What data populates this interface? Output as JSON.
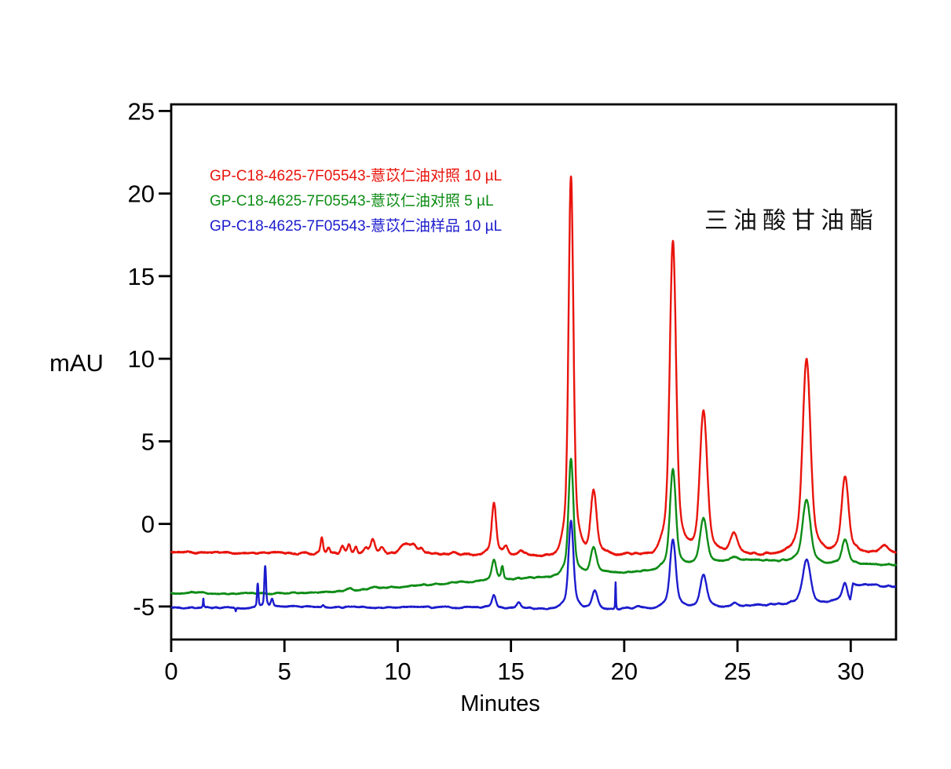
{
  "figure": {
    "background": "#ffffff",
    "ylabel": "mAU",
    "xlabel": "Minutes",
    "annotation": "三油酸甘油酯",
    "legend": [
      {
        "label": "GP-C18-4625-7F05543-薏苡仁油对照 10 µL",
        "color": "#e8140c"
      },
      {
        "label": "GP-C18-4625-7F05543-薏苡仁油对照 5 µL",
        "color": "#0e8c16"
      },
      {
        "label": "GP-C18-4625-7F05543-薏苡仁油样品 10 µL",
        "color": "#1c1ccd"
      }
    ]
  },
  "chart_data": {
    "type": "line",
    "title": "",
    "xlabel": "Minutes",
    "ylabel": "mAU",
    "x_unit": "min",
    "y_unit": "mAU",
    "xlim": [
      0,
      32
    ],
    "ylim": [
      -7,
      25.4
    ],
    "xticks": [
      0,
      5,
      10,
      15,
      20,
      25,
      30
    ],
    "yticks": [
      -5,
      0,
      5,
      10,
      15,
      20,
      25
    ],
    "grid": false,
    "frame": true,
    "legend_position": "upper-left-inside",
    "annotation": {
      "text": "三油酸甘油酯",
      "x_min": 23.6,
      "y_mAU": 18.7
    },
    "series": [
      {
        "name": "GP-C18-4625-7F05543-薏苡仁油对照 10 µL",
        "color": "#e8140c",
        "noise": 0.075,
        "seed": 11,
        "baseline": [
          [
            0,
            -1.72
          ],
          [
            5,
            -1.76
          ],
          [
            6.2,
            -1.8
          ],
          [
            12,
            -1.82
          ],
          [
            14,
            -1.85
          ],
          [
            16.8,
            -1.88
          ],
          [
            19.3,
            -1.82
          ],
          [
            21.3,
            -1.8
          ],
          [
            24.3,
            -1.82
          ],
          [
            27,
            -1.8
          ],
          [
            30.6,
            -1.7
          ],
          [
            31.3,
            -1.72
          ],
          [
            32,
            -1.72
          ]
        ],
        "peaks": [
          [
            6.65,
            -0.8,
            0.05
          ],
          [
            6.95,
            -1.45,
            0.05
          ],
          [
            7.55,
            -1.4,
            0.07
          ],
          [
            7.85,
            -1.28,
            0.06
          ],
          [
            8.15,
            -1.33,
            0.06
          ],
          [
            8.6,
            -1.5,
            0.07
          ],
          [
            8.9,
            -0.95,
            0.09
          ],
          [
            9.3,
            -1.5,
            0.09
          ],
          [
            10.3,
            -1.28,
            0.2
          ],
          [
            10.7,
            -1.35,
            0.12
          ],
          [
            11.05,
            -1.5,
            0.09
          ],
          [
            12.55,
            -1.7,
            0.1
          ],
          [
            14.25,
            1.25,
            0.09
          ],
          [
            14.78,
            -1.38,
            0.08
          ],
          [
            15.45,
            -1.55,
            0.09
          ],
          [
            17.65,
            21.0,
            0.1
          ],
          [
            18.65,
            2.1,
            0.12
          ],
          [
            22.15,
            17.15,
            0.13
          ],
          [
            23.5,
            6.8,
            0.15
          ],
          [
            24.85,
            -0.55,
            0.16
          ],
          [
            28.05,
            10.0,
            0.16
          ],
          [
            29.75,
            2.9,
            0.14
          ],
          [
            31.5,
            -1.3,
            0.18
          ]
        ]
      },
      {
        "name": "GP-C18-4625-7F05543-薏苡仁油对照 5 µL",
        "color": "#0e8c16",
        "noise": 0.055,
        "seed": 22,
        "baseline": [
          [
            0,
            -4.2
          ],
          [
            1.2,
            -4.15
          ],
          [
            2.5,
            -4.22
          ],
          [
            5,
            -4.18
          ],
          [
            6.5,
            -4.12
          ],
          [
            8,
            -4.0
          ],
          [
            9,
            -3.92
          ],
          [
            10,
            -3.82
          ],
          [
            11,
            -3.72
          ],
          [
            12,
            -3.6
          ],
          [
            13,
            -3.5
          ],
          [
            14.8,
            -3.35
          ],
          [
            16,
            -3.25
          ],
          [
            17.1,
            -3.15
          ],
          [
            18.2,
            -3.0
          ],
          [
            19.5,
            -2.92
          ],
          [
            20.5,
            -2.88
          ],
          [
            21.4,
            -2.8
          ],
          [
            22.8,
            -2.55
          ],
          [
            23.1,
            -2.5
          ],
          [
            24.3,
            -2.3
          ],
          [
            25.2,
            -2.2
          ],
          [
            26.5,
            -2.2
          ],
          [
            27.3,
            -2.25
          ],
          [
            28.8,
            -2.42
          ],
          [
            30.3,
            -2.4
          ],
          [
            31.2,
            -2.45
          ],
          [
            32,
            -2.45
          ]
        ],
        "peaks": [
          [
            7.9,
            -3.9,
            0.08
          ],
          [
            9.0,
            -3.78,
            0.1
          ],
          [
            14.25,
            -2.15,
            0.09
          ],
          [
            14.62,
            -2.62,
            0.045
          ],
          [
            17.65,
            3.95,
            0.1
          ],
          [
            18.65,
            -1.4,
            0.12
          ],
          [
            22.15,
            3.35,
            0.12
          ],
          [
            23.5,
            0.35,
            0.14
          ],
          [
            24.85,
            -1.98,
            0.14
          ],
          [
            28.05,
            1.45,
            0.16
          ],
          [
            29.75,
            -0.95,
            0.13
          ]
        ]
      },
      {
        "name": "GP-C18-4625-7F05543-薏苡仁油样品 10 µL",
        "color": "#1c1ccd",
        "noise": 0.05,
        "seed": 33,
        "baseline": [
          [
            0,
            -5.08
          ],
          [
            3.4,
            -5.08
          ],
          [
            5.2,
            -5.0
          ],
          [
            7,
            -5.05
          ],
          [
            10,
            -5.05
          ],
          [
            13,
            -5.05
          ],
          [
            15.8,
            -5.1
          ],
          [
            16.8,
            -5.12
          ],
          [
            19.4,
            -5.15
          ],
          [
            20.9,
            -5.1
          ],
          [
            22.9,
            -5.05
          ],
          [
            24.5,
            -5.0
          ],
          [
            26,
            -4.9
          ],
          [
            27.2,
            -4.85
          ],
          [
            28.7,
            -4.85
          ],
          [
            29.3,
            -4.62
          ],
          [
            29.6,
            -4.58
          ],
          [
            29.98,
            -4.78
          ],
          [
            30.1,
            -3.7
          ],
          [
            30.7,
            -3.66
          ],
          [
            31.4,
            -3.75
          ],
          [
            32,
            -3.8
          ]
        ],
        "peaks": [
          [
            1.42,
            -4.55,
            0.015
          ],
          [
            2.85,
            -5.3,
            0.018
          ],
          [
            3.82,
            -3.6,
            0.03
          ],
          [
            4.15,
            -2.55,
            0.035
          ],
          [
            4.45,
            -4.55,
            0.05
          ],
          [
            6.7,
            -4.9,
            0.05
          ],
          [
            14.25,
            -4.35,
            0.08
          ],
          [
            15.35,
            -4.78,
            0.08
          ],
          [
            17.65,
            0.2,
            0.1
          ],
          [
            18.7,
            -4.05,
            0.11
          ],
          [
            19.62,
            -3.5,
            0.014
          ],
          [
            20.6,
            -4.95,
            0.12
          ],
          [
            22.15,
            -1.0,
            0.12
          ],
          [
            23.5,
            -3.05,
            0.13
          ],
          [
            24.9,
            -4.8,
            0.12
          ],
          [
            28.05,
            -2.15,
            0.16
          ],
          [
            29.75,
            -3.6,
            0.1
          ]
        ]
      }
    ]
  }
}
